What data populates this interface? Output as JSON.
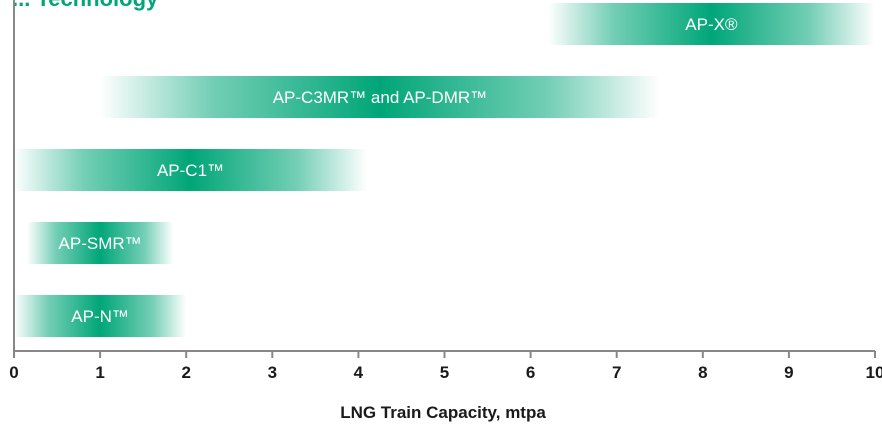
{
  "chart_data": {
    "type": "bar",
    "orientation": "horizontal-range",
    "title": "... Technology",
    "xlabel": "LNG Train Capacity, mtpa",
    "ylabel": "",
    "xlim": [
      0,
      10
    ],
    "xticks": [
      0,
      1,
      2,
      3,
      4,
      5,
      6,
      7,
      8,
      9,
      10
    ],
    "grid": false,
    "bar_color": "#00a678",
    "series": [
      {
        "label": "AP-X®",
        "start": 6.2,
        "end": 10.0
      },
      {
        "label": "AP-C3MR™ and AP-DMR™",
        "start": 1.0,
        "end": 7.5
      },
      {
        "label": "AP-C1™",
        "start": 0.0,
        "end": 4.1
      },
      {
        "label": "AP-SMR™",
        "start": 0.15,
        "end": 1.85
      },
      {
        "label": "AP-N™",
        "start": 0.0,
        "end": 2.0
      }
    ]
  }
}
